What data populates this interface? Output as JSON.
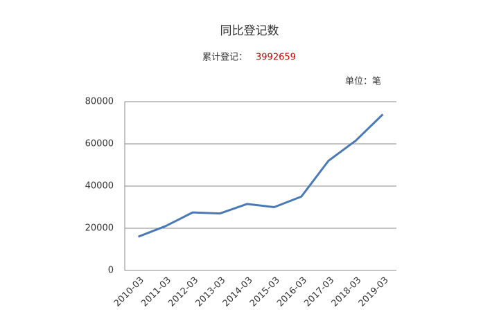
{
  "chart_data": {
    "type": "line",
    "title": "同比登记数",
    "subtitle": "累计登记：",
    "total": 3992659,
    "unit": "单位：笔",
    "categories": [
      "2010-03",
      "2011-03",
      "2012-03",
      "2013-03",
      "2014-03",
      "2015-03",
      "2016-03",
      "2017-03",
      "2018-03",
      "2019-03"
    ],
    "series": [
      {
        "name": "同比登记数",
        "color": "#4a7ab5",
        "values": [
          16000,
          21000,
          27500,
          27000,
          31500,
          30000,
          35000,
          52000,
          61500,
          74000
        ]
      }
    ],
    "ylim": [
      0,
      80000
    ],
    "yticks": [
      0,
      20000,
      40000,
      60000,
      80000
    ],
    "grid": true,
    "total_color": "#cc0000"
  }
}
